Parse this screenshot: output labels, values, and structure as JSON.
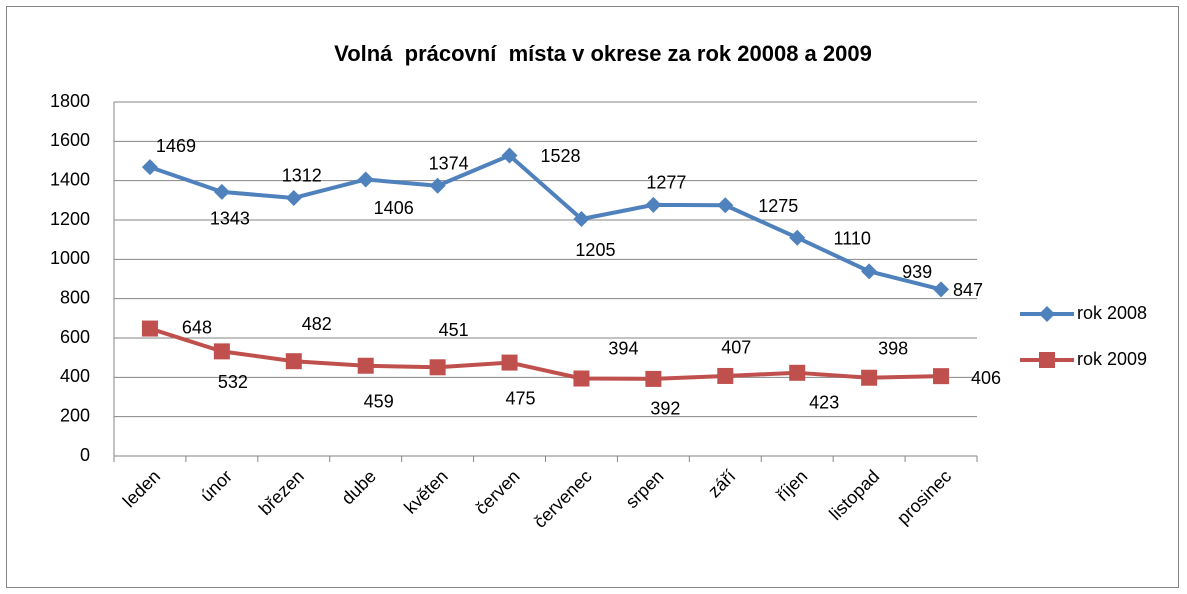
{
  "chart_data": {
    "type": "line",
    "title": "Volná  prácovní  místa v okrese za rok 20008 a 2009",
    "categories": [
      "leden",
      "únor",
      "březen",
      "dube",
      "květen",
      "červen",
      "červenec",
      "srpen",
      "září",
      "říjen",
      "listopad",
      "prosinec"
    ],
    "series": [
      {
        "name": "rok 2008",
        "color": "#4f81bd",
        "marker": "diamond",
        "values": [
          1469,
          1343,
          1312,
          1406,
          1374,
          1528,
          1205,
          1277,
          1275,
          1110,
          939,
          847
        ]
      },
      {
        "name": "rok 2009",
        "color": "#c0504d",
        "marker": "square",
        "values": [
          648,
          532,
          482,
          459,
          451,
          475,
          394,
          392,
          407,
          423,
          398,
          406
        ]
      }
    ],
    "ylim": [
      0,
      1800
    ],
    "yticks": [
      0,
      200,
      400,
      600,
      800,
      1000,
      1200,
      1400,
      1600,
      1800
    ],
    "grid": true,
    "legend": "right"
  }
}
